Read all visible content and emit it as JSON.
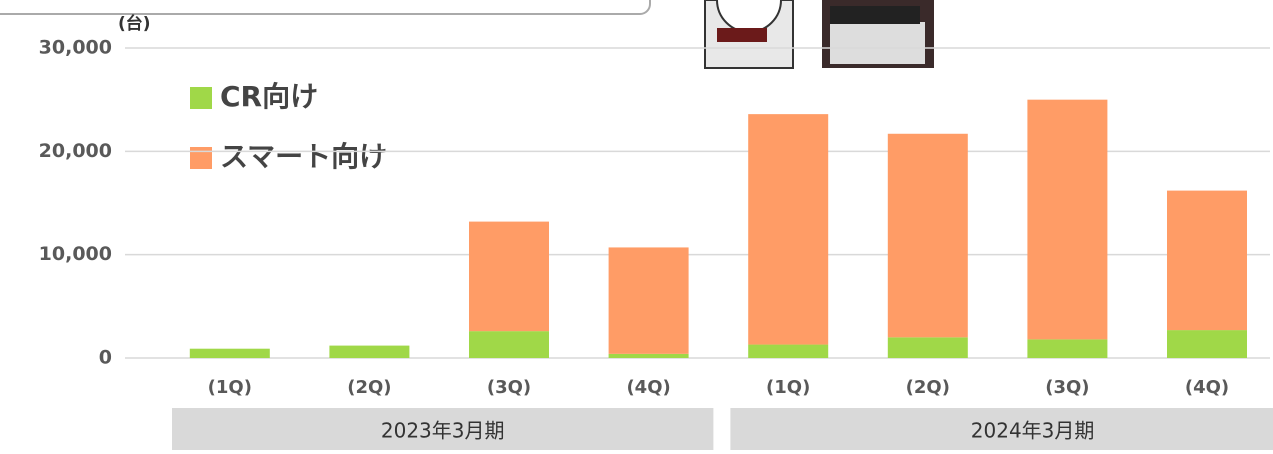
{
  "chart_data": {
    "type": "stacked_bar",
    "unit_label": "(台)",
    "categories": [
      "(1Q)",
      "(2Q)",
      "(3Q)",
      "(4Q)",
      "(1Q)",
      "(2Q)",
      "(3Q)",
      "(4Q)"
    ],
    "groups": [
      {
        "label": "2023年3月期",
        "span": 4
      },
      {
        "label": "2024年3月期",
        "span": 4
      }
    ],
    "series": [
      {
        "name": "CR向け",
        "color": "#a0d848",
        "values": [
          900,
          1200,
          2600,
          400,
          1300,
          2000,
          1800,
          2700
        ]
      },
      {
        "name": "スマート向け",
        "color": "#ff9c66",
        "values": [
          0,
          0,
          10600,
          10300,
          22300,
          19700,
          23200,
          13500
        ]
      }
    ],
    "ylim": [
      0,
      30000
    ],
    "yticks": [
      0,
      {
        "value": 10000,
        "label": "10,000"
      },
      {
        "value": 20000,
        "label": "20,000"
      },
      {
        "value": 30000,
        "label": "30,000"
      }
    ],
    "grid": true
  }
}
